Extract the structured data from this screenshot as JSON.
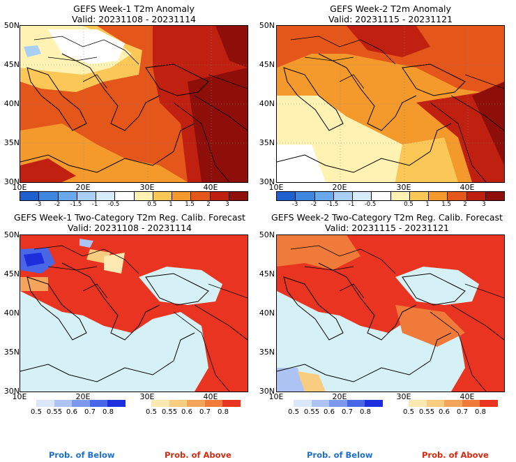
{
  "panels": [
    {
      "title": "GEFS Week-1 T2m Anomaly",
      "valid": "Valid: 20231108 - 20231114"
    },
    {
      "title": "GEFS Week-2 T2m Anomaly",
      "valid": "Valid: 20231115 - 20231121"
    },
    {
      "title": "GEFS Week-1 Two-Category T2m Reg. Calib. Forecast",
      "valid": "Valid: 20231108 - 20231114"
    },
    {
      "title": "GEFS Week-2 Two-Category T2m Reg. Calib. Forecast",
      "valid": "Valid: 20231115 - 20231121"
    }
  ],
  "axes": {
    "lat_labels": [
      "50N",
      "45N",
      "40N",
      "35N",
      "30N"
    ],
    "lon_labels": [
      "10E",
      "20E",
      "30E",
      "40E"
    ]
  },
  "anomaly_colorbar": {
    "labels": [
      "-3",
      "-2",
      "-1.5",
      "-1",
      "-0.5",
      "0.5",
      "1",
      "1.5",
      "2",
      "3"
    ],
    "colors": [
      "#1f5fcf",
      "#3e86e0",
      "#6aa8ec",
      "#a9cff5",
      "#d8ebfb",
      "#ffffff",
      "#fff2b3",
      "#fbc858",
      "#f49a2c",
      "#e4561a",
      "#c02010",
      "#8e0f0a"
    ]
  },
  "prob_below_bar": {
    "labels": [
      "0.5",
      "0.55",
      "0.6",
      "0.7",
      "0.8"
    ],
    "colors": [
      "#dbe6f9",
      "#adc3f3",
      "#7c98ec",
      "#4866e6",
      "#1d2fdc"
    ]
  },
  "prob_above_bar": {
    "labels": [
      "0.5",
      "0.55",
      "0.6",
      "0.7",
      "0.8"
    ],
    "colors": [
      "#fce8b1",
      "#f9cd80",
      "#f5a45c",
      "#ef7a3a",
      "#e83420"
    ]
  },
  "footer": {
    "below_label": "Prob. of Below",
    "above_label": "Prob. of Above",
    "below_color": "#1a6fd0",
    "above_color": "#d42a10"
  },
  "sea_color": "#d6f1f6"
}
